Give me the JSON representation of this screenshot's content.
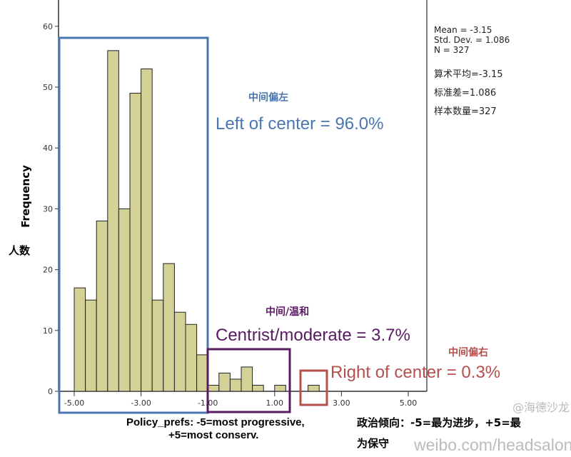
{
  "chart_data": {
    "type": "bar",
    "subtype": "histogram",
    "bin_width": 0.3333,
    "bin_starts": [
      -5.0,
      -4.667,
      -4.333,
      -4.0,
      -3.667,
      -3.333,
      -3.0,
      -2.667,
      -2.333,
      -2.0,
      -1.667,
      -1.333,
      -1.0,
      -0.667,
      -0.333,
      0.0,
      0.333,
      0.667,
      1.0,
      1.333,
      1.667,
      2.0
    ],
    "values": [
      17,
      15,
      28,
      56,
      30,
      49,
      53,
      15,
      21,
      13,
      11,
      6,
      1,
      3,
      2,
      4,
      1,
      0,
      1,
      0,
      0,
      1
    ],
    "xlim": [
      -5.5,
      5.5
    ],
    "ylim": [
      0,
      60
    ],
    "xticks": [
      "-5.00",
      "-3.00",
      "-1.00",
      "1.00",
      "3.00",
      "5.00"
    ],
    "xtick_values": [
      -5,
      -3,
      -1,
      1,
      3,
      5
    ],
    "yticks": [
      "0",
      "10",
      "20",
      "30",
      "40",
      "50",
      "60"
    ],
    "ytick_values": [
      0,
      10,
      20,
      30,
      40,
      50,
      60
    ],
    "ylabel": "Frequency",
    "ylabel_cn": "人数",
    "xlabel_line1": "Policy_prefs: -5=most progressive,",
    "xlabel_line2": "+5=most conserv.",
    "xlabel_cn_line1": "政治倾向：-5=最为进步，+5=最",
    "xlabel_cn_line2": "为保守",
    "bar_color": "#d4d197",
    "stats": {
      "mean": "Mean = -3.15",
      "sd": "Std. Dev. = 1.086",
      "n": "N = 327"
    },
    "stats_cn": {
      "mean": "算术平均=-3.15",
      "sd": "标准差=1.086",
      "n": "样本数量=327"
    },
    "annotations": [
      {
        "cn": "中间偏左",
        "en": "Left of center = 96.0%",
        "color": "#4a76b0",
        "range": [
          -5.0,
          -1.0
        ]
      },
      {
        "cn": "中间/温和",
        "en": "Centrist/moderate = 3.7%",
        "color": "#5a1a63",
        "range": [
          -1.0,
          1.333
        ]
      },
      {
        "cn": "中间偏右",
        "en": "Right of center = 0.3%",
        "color": "#b5504c",
        "range": [
          2.0,
          2.333
        ]
      }
    ]
  },
  "watermark": {
    "handle": "@海德沙龙",
    "url": "weibo.com/headsalon"
  }
}
